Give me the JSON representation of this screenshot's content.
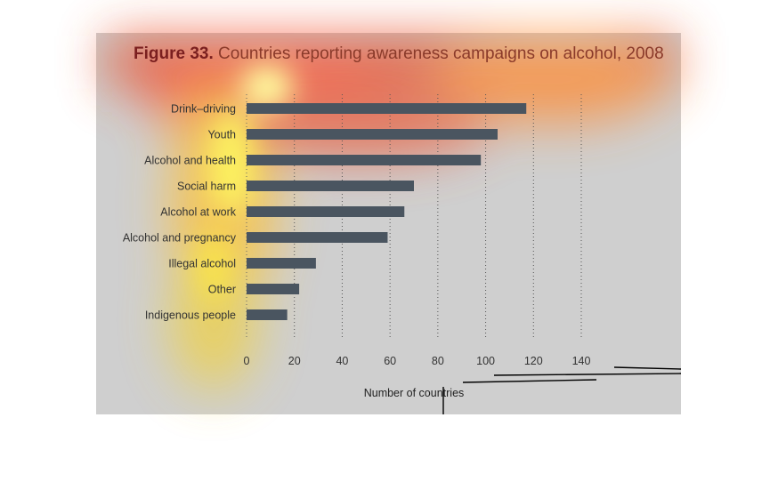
{
  "figure": {
    "title_prefix": "Figure 33.",
    "title_text": "Countries reporting awareness campaigns on alcohol, 2008"
  },
  "colors": {
    "background": "#cfcfcf",
    "bar": "#4a5560",
    "title_prefix": "#7a1f1f",
    "title_text": "#8a3a2a",
    "label": "#333333"
  },
  "chart_data": {
    "type": "bar",
    "orientation": "horizontal",
    "categories": [
      "Drink–driving",
      "Youth",
      "Alcohol and health",
      "Social harm",
      "Alcohol at work",
      "Alcohol and pregnancy",
      "Illegal alcohol",
      "Other",
      "Indigenous people"
    ],
    "values": [
      117,
      105,
      98,
      70,
      66,
      59,
      29,
      22,
      17
    ],
    "xlabel": "Number of countries",
    "xlim": [
      0,
      140
    ],
    "xticks": [
      0,
      20,
      40,
      60,
      80,
      100,
      120,
      140
    ],
    "grid": "vertical dotted"
  }
}
